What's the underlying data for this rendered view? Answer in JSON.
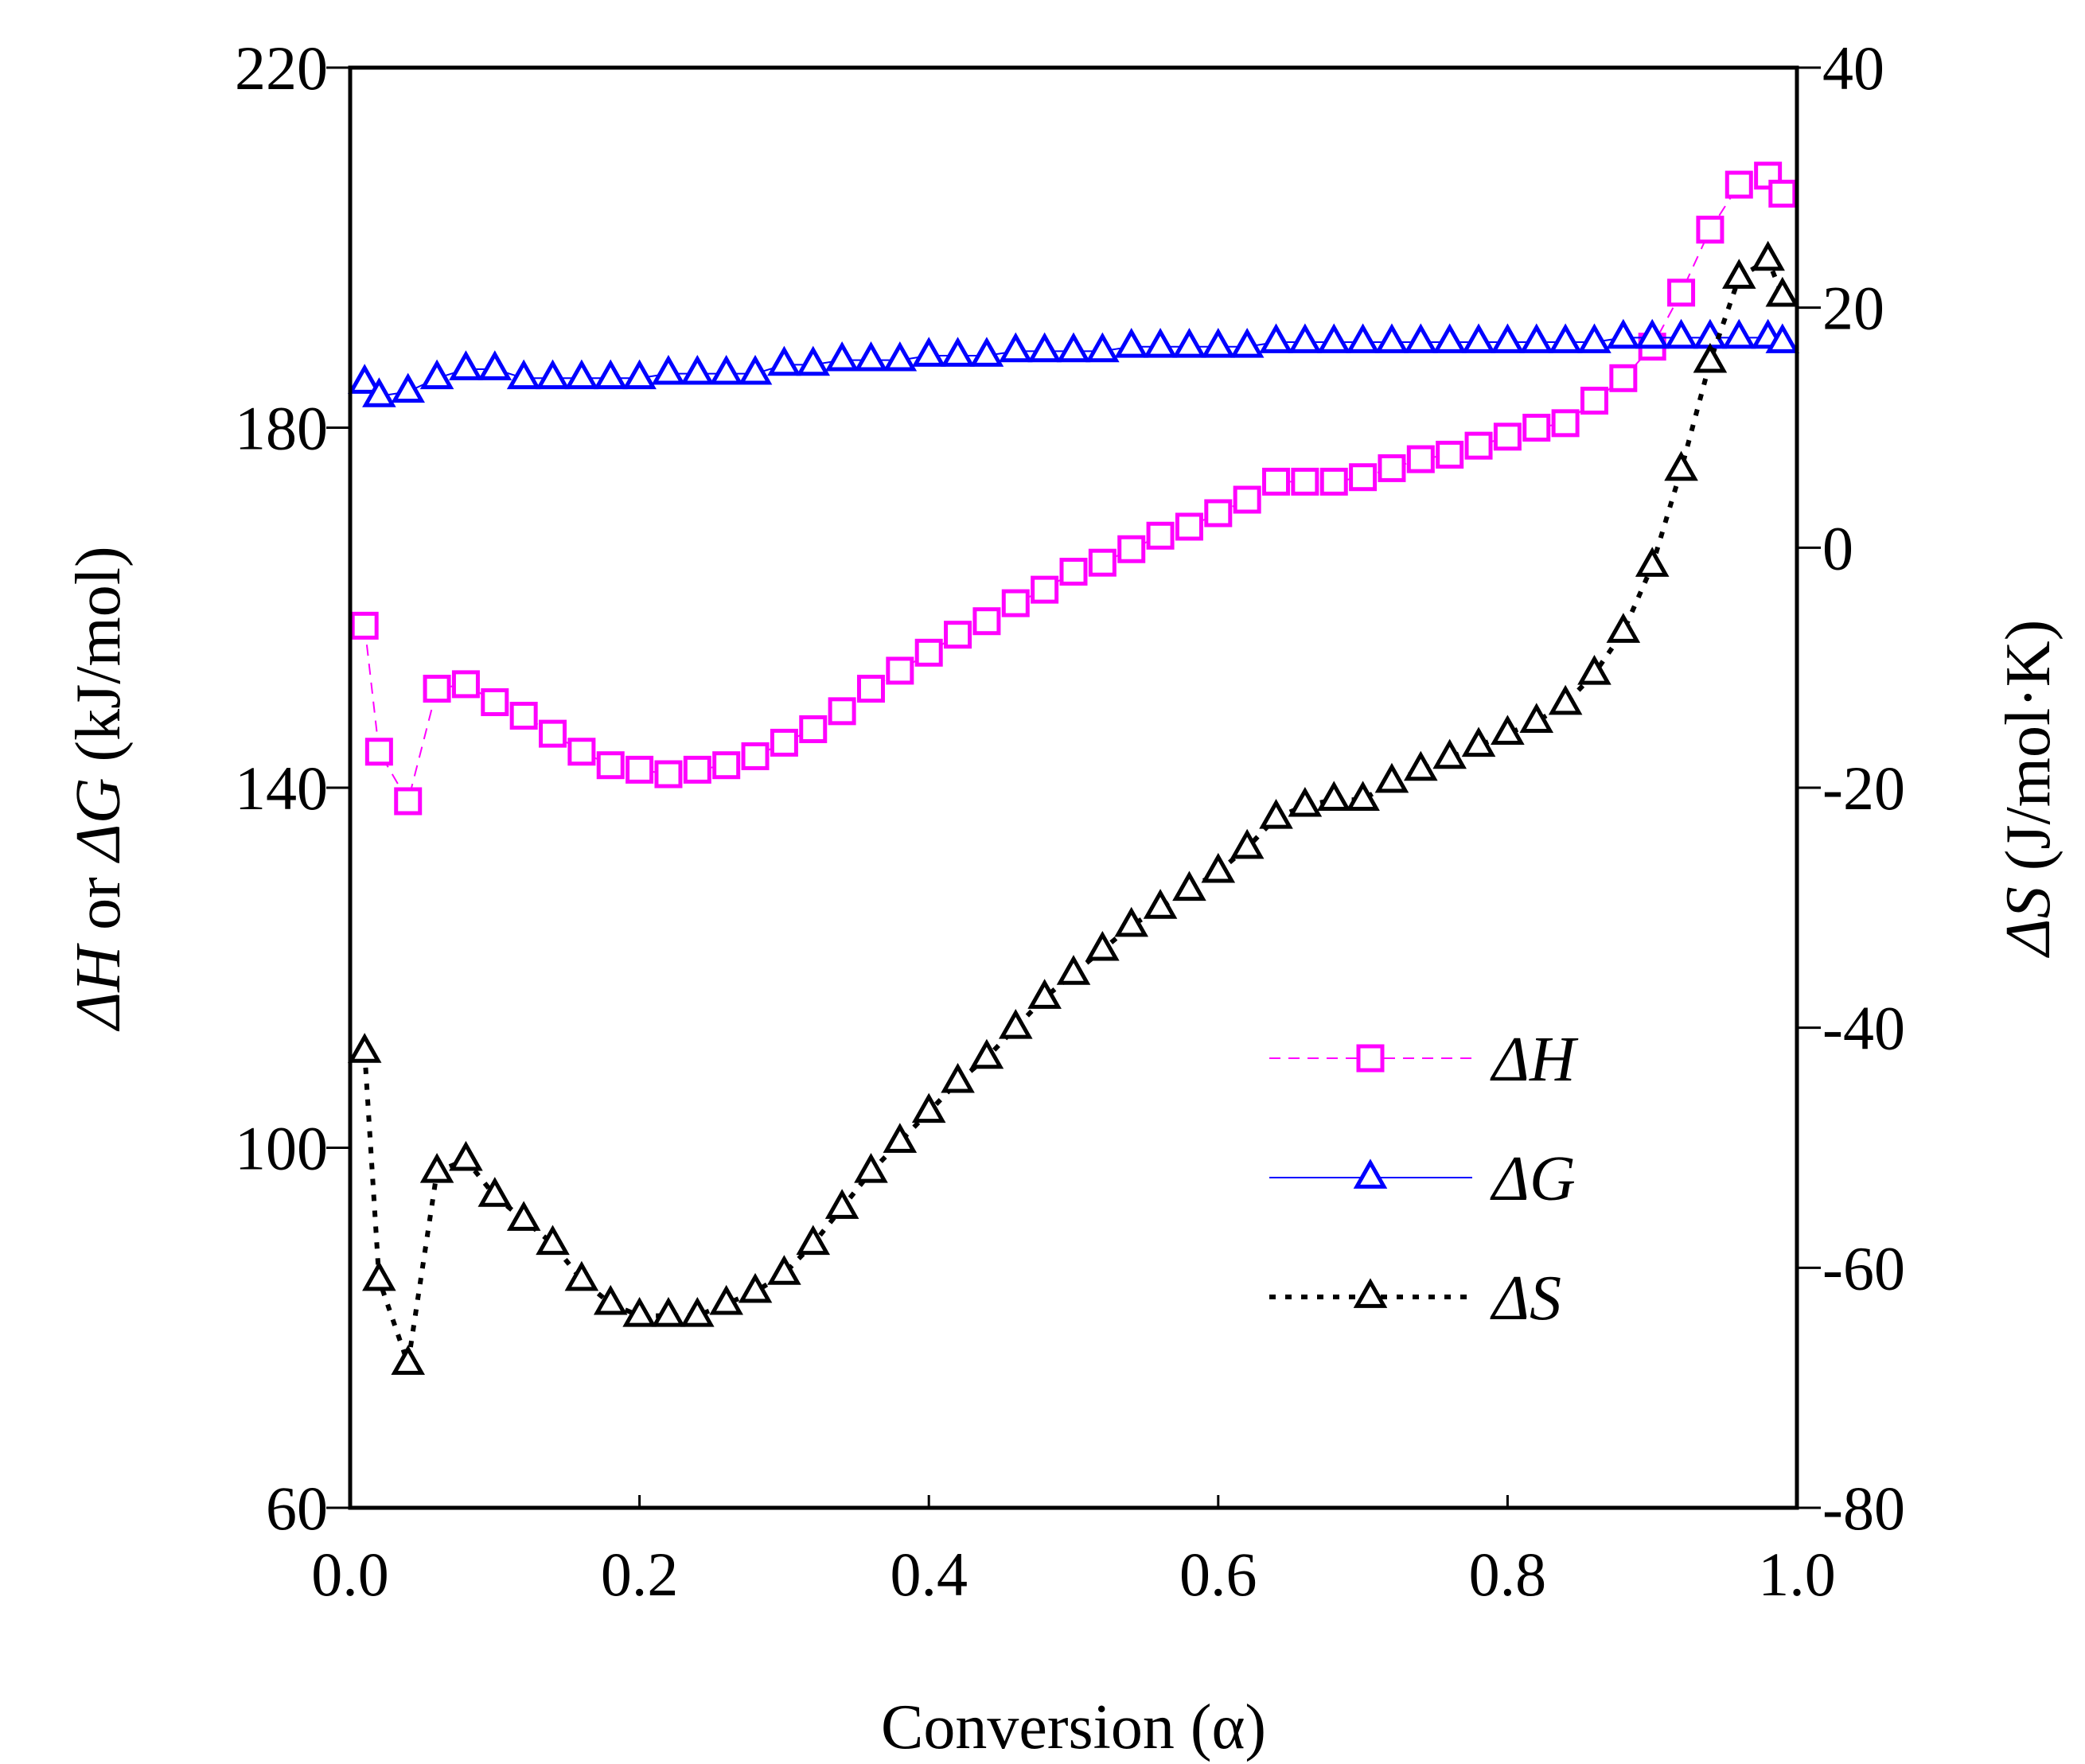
{
  "chart_data": {
    "type": "line",
    "title": "",
    "xlabel": "Conversion (α)",
    "ylabel_left": "ΔH or ΔG (kJ/mol)",
    "ylabel_left_parts": [
      "ΔH",
      " or ",
      "ΔG",
      " (kJ/mol)"
    ],
    "ylabel_right": "ΔS (J/mol·K)",
    "ylabel_right_parts": [
      "ΔS",
      " (J/mol·K)"
    ],
    "xlim": [
      0.0,
      1.0
    ],
    "ylim_left": [
      60,
      220
    ],
    "ylim_right": [
      -80,
      40
    ],
    "x_ticks": [
      "0.0",
      "0.2",
      "0.4",
      "0.6",
      "0.8",
      "1.0"
    ],
    "y_left_ticks": [
      "60",
      "100",
      "140",
      "180",
      "220"
    ],
    "y_right_ticks": [
      "-80",
      "-60",
      "-40",
      "-20",
      "0",
      "20",
      "40"
    ],
    "grid": false,
    "legend_position": "right-middle",
    "colors": {
      "dH": "#ff00ff",
      "dG": "#0000ff",
      "dS": "#000000"
    },
    "series": [
      {
        "name": "ΔH",
        "axis": "left",
        "marker": "square",
        "line": "dashed",
        "x": [
          0.01,
          0.02,
          0.04,
          0.06,
          0.08,
          0.1,
          0.12,
          0.14,
          0.16,
          0.18,
          0.2,
          0.22,
          0.24,
          0.26,
          0.28,
          0.3,
          0.32,
          0.34,
          0.36,
          0.38,
          0.4,
          0.42,
          0.44,
          0.46,
          0.48,
          0.5,
          0.52,
          0.54,
          0.56,
          0.58,
          0.6,
          0.62,
          0.64,
          0.66,
          0.68,
          0.7,
          0.72,
          0.74,
          0.76,
          0.78,
          0.8,
          0.82,
          0.84,
          0.86,
          0.88,
          0.9,
          0.92,
          0.94,
          0.96,
          0.98,
          0.99
        ],
        "values": [
          158,
          144,
          138.5,
          151,
          151.5,
          149.5,
          148,
          146,
          144,
          142.5,
          142,
          141.5,
          142,
          142.5,
          143.5,
          145,
          146.5,
          148.5,
          151,
          153,
          155,
          157,
          158.5,
          160.5,
          162,
          164,
          165,
          166.5,
          168,
          169,
          170.5,
          172,
          174,
          174,
          174,
          174.5,
          175.5,
          176.5,
          177,
          178,
          179,
          180,
          180.5,
          183,
          185.5,
          189,
          195,
          202,
          207,
          208,
          206
        ]
      },
      {
        "name": "ΔG",
        "axis": "left",
        "marker": "triangle",
        "line": "solid",
        "x": [
          0.01,
          0.02,
          0.04,
          0.06,
          0.08,
          0.1,
          0.12,
          0.14,
          0.16,
          0.18,
          0.2,
          0.22,
          0.24,
          0.26,
          0.28,
          0.3,
          0.32,
          0.34,
          0.36,
          0.38,
          0.4,
          0.42,
          0.44,
          0.46,
          0.48,
          0.5,
          0.52,
          0.54,
          0.56,
          0.58,
          0.6,
          0.62,
          0.64,
          0.66,
          0.68,
          0.7,
          0.72,
          0.74,
          0.76,
          0.78,
          0.8,
          0.82,
          0.84,
          0.86,
          0.88,
          0.9,
          0.92,
          0.94,
          0.96,
          0.98,
          0.99
        ],
        "values": [
          185,
          183.5,
          184,
          185.5,
          186.5,
          186.5,
          185.5,
          185.5,
          185.5,
          185.5,
          185.5,
          186,
          186,
          186,
          186,
          187,
          187,
          187.5,
          187.5,
          187.5,
          188,
          188,
          188,
          188.5,
          188.5,
          188.5,
          188.5,
          189,
          189,
          189,
          189,
          189,
          189.5,
          189.5,
          189.5,
          189.5,
          189.5,
          189.5,
          189.5,
          189.5,
          189.5,
          189.5,
          189.5,
          189.5,
          190,
          190,
          190,
          190,
          190,
          190,
          189.5
        ]
      },
      {
        "name": "ΔS",
        "axis": "right",
        "marker": "triangle",
        "line": "dotted",
        "x": [
          0.01,
          0.02,
          0.04,
          0.06,
          0.08,
          0.1,
          0.12,
          0.14,
          0.16,
          0.18,
          0.2,
          0.22,
          0.24,
          0.26,
          0.28,
          0.3,
          0.32,
          0.34,
          0.36,
          0.38,
          0.4,
          0.42,
          0.44,
          0.46,
          0.48,
          0.5,
          0.52,
          0.54,
          0.56,
          0.58,
          0.6,
          0.62,
          0.64,
          0.66,
          0.68,
          0.7,
          0.72,
          0.74,
          0.76,
          0.78,
          0.8,
          0.82,
          0.84,
          0.86,
          0.88,
          0.9,
          0.92,
          0.94,
          0.96,
          0.98,
          0.99
        ],
        "values": [
          -42,
          -61,
          -68,
          -52,
          -51,
          -54,
          -56,
          -58,
          -61,
          -63,
          -64,
          -64,
          -64,
          -63,
          -62,
          -60.5,
          -58,
          -55,
          -52,
          -49.5,
          -47,
          -44.5,
          -42.5,
          -40,
          -37.5,
          -35.5,
          -33.5,
          -31.5,
          -30,
          -28.5,
          -27,
          -25,
          -22.5,
          -21.5,
          -21,
          -21,
          -19.5,
          -18.5,
          -17.5,
          -16.5,
          -15.5,
          -14.5,
          -13,
          -10.5,
          -7,
          -1.5,
          6.5,
          15.5,
          22.5,
          24,
          21
        ]
      }
    ]
  }
}
